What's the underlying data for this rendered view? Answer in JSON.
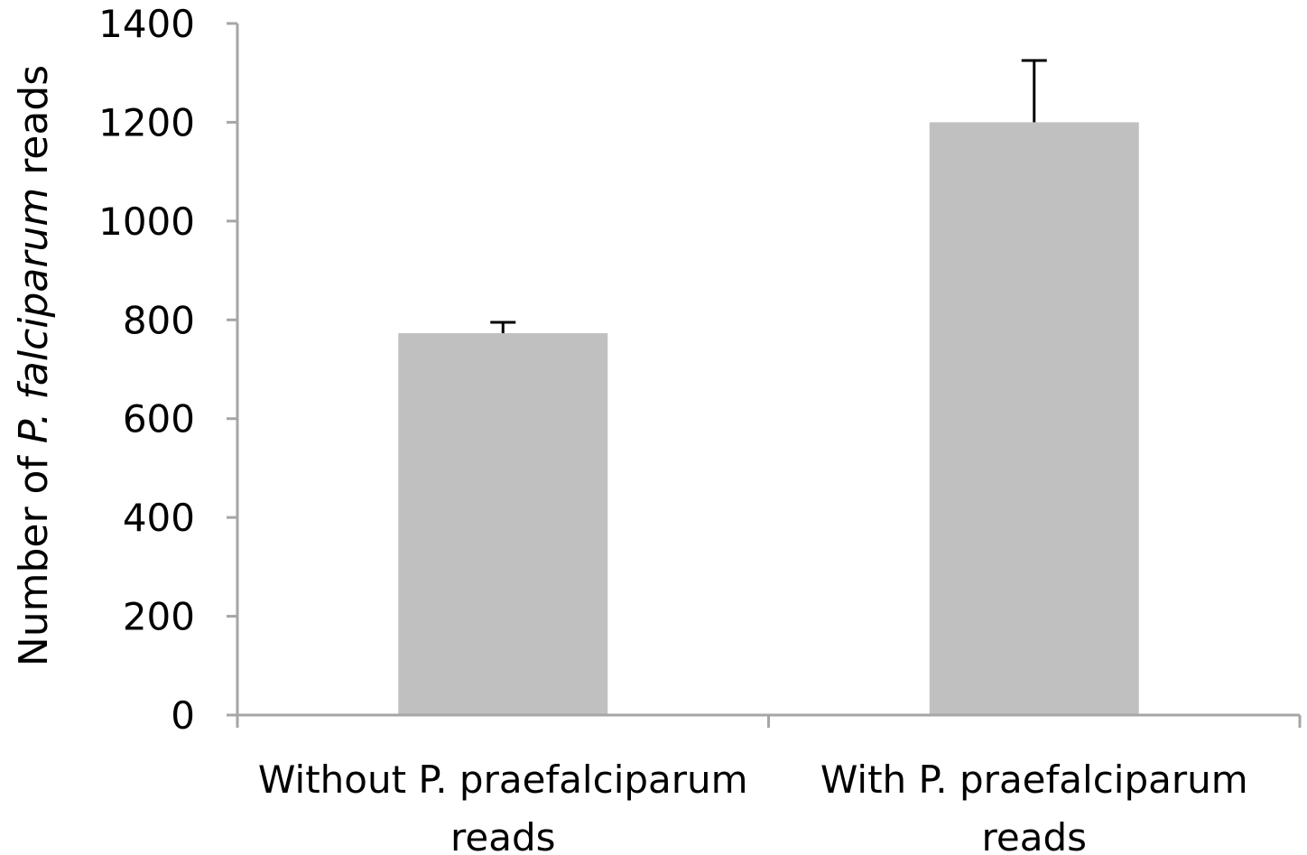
{
  "chart_data": {
    "type": "bar",
    "categories": [
      [
        "Without P. praefalciparum",
        "reads"
      ],
      [
        "With P. praefalciparum",
        "reads"
      ]
    ],
    "values": [
      773,
      1200
    ],
    "error_plus": [
      22,
      125
    ],
    "ylabel": {
      "prefix": "Number of ",
      "italic": "P. falciparum",
      "suffix": " reads"
    },
    "ylim": [
      0,
      1400
    ],
    "yticks": [
      0,
      200,
      400,
      600,
      800,
      1000,
      1200,
      1400
    ],
    "grid": false,
    "legend": "none",
    "colors": {
      "bar": "#c0c0c0",
      "axis": "#a6a6a6",
      "error_bar": "#000000",
      "text": "#000000"
    }
  }
}
